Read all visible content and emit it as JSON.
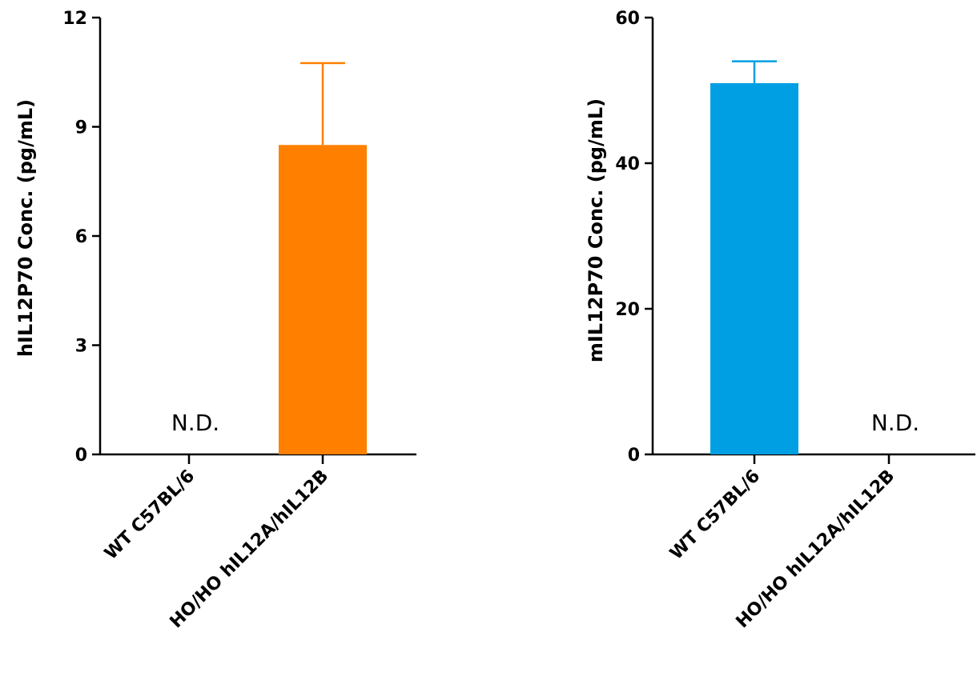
{
  "chart_data": [
    {
      "type": "bar",
      "categories": [
        "WT C57BL/6",
        "HO/HO hIL12A/hIL12B"
      ],
      "values": [
        null,
        8.5
      ],
      "error": [
        null,
        2.25
      ],
      "annotations": [
        "N.D.",
        ""
      ],
      "ylabel": "hIL12P70 Conc. (pg/mL)",
      "ylim": [
        0,
        12
      ],
      "yticks": [
        0,
        3,
        6,
        9,
        12
      ],
      "color": "#FF8000"
    },
    {
      "type": "bar",
      "categories": [
        "WT C57BL/6",
        "HO/HO hIL12A/hIL12B"
      ],
      "values": [
        51,
        null
      ],
      "error": [
        3,
        null
      ],
      "annotations": [
        "",
        "N.D."
      ],
      "ylabel": "mIL12P70 Conc. (pg/mL)",
      "ylim": [
        0,
        60
      ],
      "yticks": [
        0,
        20,
        40,
        60
      ],
      "color": "#009FE3"
    }
  ]
}
